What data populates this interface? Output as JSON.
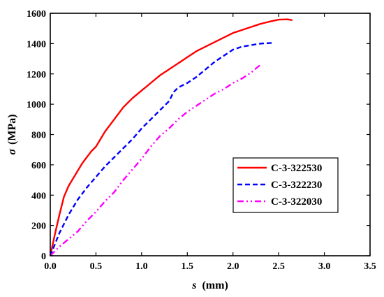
{
  "chart_data": {
    "type": "line",
    "title": "",
    "xlabel_symbol": "s",
    "xlabel_unit": "(mm)",
    "ylabel_symbol": "σ",
    "ylabel_unit": "(MPa)",
    "xlim": [
      0.0,
      3.5
    ],
    "ylim": [
      0,
      1600
    ],
    "xticks": [
      "0.0",
      "0.5",
      "1.0",
      "1.5",
      "2.0",
      "2.5",
      "3.0",
      "3.5"
    ],
    "yticks": [
      "0",
      "200",
      "400",
      "600",
      "800",
      "1000",
      "1200",
      "1400",
      "1600"
    ],
    "grid": false,
    "legend_position": "center-right",
    "series": [
      {
        "name": "C-3-322530",
        "color": "#ff0000",
        "dash": "solid",
        "x": [
          0.0,
          0.05,
          0.1,
          0.15,
          0.2,
          0.25,
          0.3,
          0.35,
          0.4,
          0.45,
          0.5,
          0.6,
          0.7,
          0.8,
          0.9,
          1.0,
          1.1,
          1.2,
          1.3,
          1.4,
          1.5,
          1.6,
          1.7,
          1.8,
          1.9,
          2.0,
          2.1,
          2.2,
          2.3,
          2.4,
          2.5,
          2.6,
          2.65
        ],
        "y": [
          0,
          140,
          270,
          390,
          460,
          510,
          560,
          610,
          650,
          690,
          720,
          820,
          900,
          980,
          1040,
          1090,
          1140,
          1190,
          1230,
          1270,
          1310,
          1350,
          1380,
          1410,
          1440,
          1470,
          1490,
          1510,
          1530,
          1545,
          1558,
          1560,
          1555
        ]
      },
      {
        "name": "C-3-322230",
        "color": "#0000ff",
        "dash": "dashed",
        "x": [
          0.0,
          0.1,
          0.2,
          0.3,
          0.4,
          0.5,
          0.6,
          0.7,
          0.8,
          0.9,
          1.0,
          1.1,
          1.2,
          1.3,
          1.35,
          1.4,
          1.5,
          1.6,
          1.7,
          1.8,
          1.9,
          2.0,
          2.1,
          2.2,
          2.3,
          2.45
        ],
        "y": [
          0,
          150,
          270,
          370,
          450,
          520,
          590,
          650,
          710,
          770,
          840,
          900,
          960,
          1020,
          1080,
          1110,
          1140,
          1180,
          1230,
          1280,
          1320,
          1360,
          1380,
          1390,
          1400,
          1405
        ]
      },
      {
        "name": "C-3-322030",
        "color": "#ff00ff",
        "dash": "dashdotdot",
        "x": [
          0.0,
          0.1,
          0.2,
          0.3,
          0.4,
          0.5,
          0.6,
          0.7,
          0.8,
          0.9,
          1.0,
          1.1,
          1.2,
          1.3,
          1.4,
          1.5,
          1.6,
          1.7,
          1.8,
          1.9,
          2.0,
          2.1,
          2.2,
          2.3
        ],
        "y": [
          0,
          60,
          110,
          160,
          230,
          290,
          360,
          420,
          500,
          570,
          640,
          720,
          790,
          840,
          900,
          950,
          990,
          1030,
          1070,
          1100,
          1140,
          1170,
          1210,
          1260
        ]
      }
    ]
  }
}
